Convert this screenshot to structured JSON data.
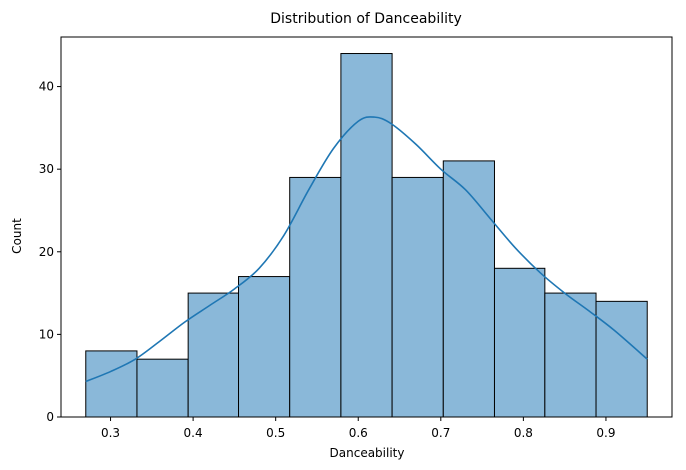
{
  "chart_data": {
    "type": "bar",
    "subtype": "histogram",
    "title": "Distribution of Danceability",
    "xlabel": "Danceability",
    "ylabel": "Count",
    "xlim": [
      0.24,
      0.98
    ],
    "ylim": [
      0,
      46
    ],
    "bins": [
      {
        "start": 0.27,
        "end": 0.332,
        "count": 8
      },
      {
        "start": 0.332,
        "end": 0.394,
        "count": 7
      },
      {
        "start": 0.394,
        "end": 0.455,
        "count": 15
      },
      {
        "start": 0.455,
        "end": 0.517,
        "count": 17
      },
      {
        "start": 0.517,
        "end": 0.579,
        "count": 29
      },
      {
        "start": 0.579,
        "end": 0.641,
        "count": 44
      },
      {
        "start": 0.641,
        "end": 0.703,
        "count": 29
      },
      {
        "start": 0.703,
        "end": 0.765,
        "count": 31
      },
      {
        "start": 0.765,
        "end": 0.826,
        "count": 18
      },
      {
        "start": 0.826,
        "end": 0.888,
        "count": 15
      },
      {
        "start": 0.888,
        "end": 0.95,
        "count": 14
      }
    ],
    "kde": {
      "x": [
        0.27,
        0.3,
        0.33,
        0.36,
        0.39,
        0.42,
        0.45,
        0.48,
        0.51,
        0.54,
        0.57,
        0.6,
        0.62,
        0.64,
        0.67,
        0.7,
        0.73,
        0.76,
        0.79,
        0.82,
        0.85,
        0.88,
        0.91,
        0.95
      ],
      "y": [
        4.3,
        5.5,
        7.0,
        9.2,
        11.5,
        13.5,
        15.5,
        18.0,
        22.0,
        27.5,
        32.5,
        35.8,
        36.3,
        35.5,
        33.0,
        30.0,
        27.5,
        24.0,
        20.5,
        17.5,
        15.0,
        12.8,
        10.5,
        7.0
      ]
    },
    "xticks": [
      0.3,
      0.4,
      0.5,
      0.6,
      0.7,
      0.8,
      0.9
    ],
    "xtick_labels": [
      "0.3",
      "0.4",
      "0.5",
      "0.6",
      "0.7",
      "0.8",
      "0.9"
    ],
    "yticks": [
      0,
      10,
      20,
      30,
      40
    ],
    "ytick_labels": [
      "0",
      "10",
      "20",
      "30",
      "40"
    ],
    "grid": false,
    "colors": {
      "bar_fill": "#8ab8d9",
      "bar_edge": "#000000",
      "kde_line": "#1f77b4"
    }
  }
}
